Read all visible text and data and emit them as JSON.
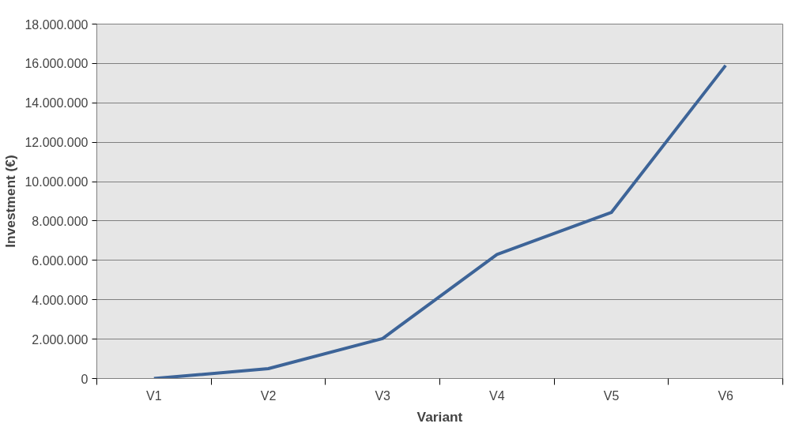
{
  "chart_data": {
    "type": "line",
    "xlabel": "Variant",
    "ylabel": "Investment (€)",
    "categories": [
      "V1",
      "V2",
      "V3",
      "V4",
      "V5",
      "V6"
    ],
    "series": [
      {
        "color": "#3d6498",
        "values": [
          0,
          500000,
          2030000,
          6300000,
          8430000,
          15900000
        ]
      }
    ],
    "ylim": [
      0,
      18000000
    ],
    "yticks": [
      0,
      {
        "value": 2000000,
        "label": "2.000.000"
      },
      {
        "value": 4000000,
        "label": "4.000.000"
      },
      {
        "value": 6000000,
        "label": "6.000.000"
      },
      {
        "value": 8000000,
        "label": "8.000.000"
      },
      {
        "value": 10000000,
        "label": "10.000.000"
      },
      {
        "value": 12000000,
        "label": "12.000.000"
      },
      {
        "value": 14000000,
        "label": "14.000.000"
      },
      {
        "value": 16000000,
        "label": "16.000.000"
      },
      {
        "value": 18000000,
        "label": "18.000.000"
      }
    ],
    "grid": "y",
    "marker": "none",
    "line_style": "solid"
  }
}
